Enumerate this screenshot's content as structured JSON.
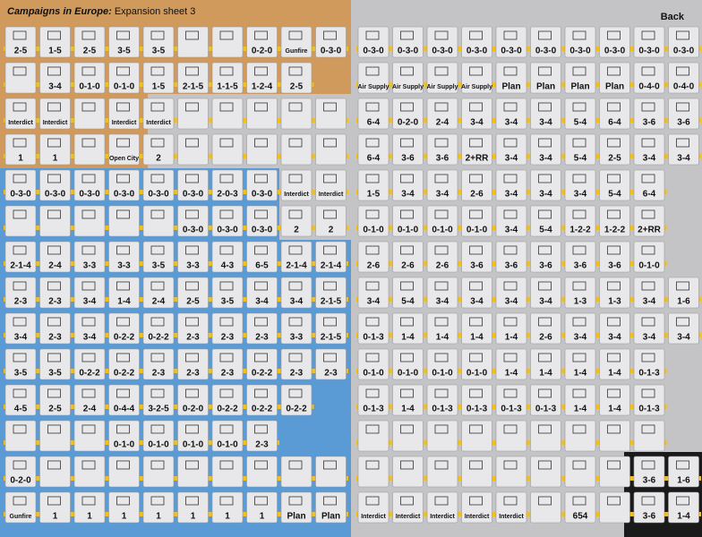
{
  "header": {
    "title_bold": "Campaigns in Europe:",
    "title": "Expansion sheet 3",
    "back": "Back"
  },
  "left_rows": [
    [
      "2-5",
      "1-5",
      "2-5",
      "3-5",
      "3-5",
      null,
      null,
      "0-2-0",
      "Gunfire",
      "0-3-0"
    ],
    [
      null,
      "3-4",
      "0-1-0",
      "0-1-0",
      "1-5",
      "2-1-5",
      "1-1-5",
      "1-2-4",
      "2-5"
    ],
    [
      "Interdict",
      "Interdict",
      null,
      "Interdict",
      "Interdict",
      null,
      null,
      null,
      null,
      null
    ],
    [
      "1",
      "1",
      null,
      "Open City",
      "2",
      null,
      null,
      null,
      null,
      null
    ],
    [
      "0-3-0",
      "0-3-0",
      "0-3-0",
      "0-3-0",
      "0-3-0",
      "0-3-0",
      "2-0-3",
      "0-3-0",
      "Interdict",
      "Interdict"
    ],
    [
      null,
      null,
      null,
      null,
      null,
      "0-3-0",
      "0-3-0",
      "0-3-0",
      "2",
      "2"
    ],
    [
      "2-1-4",
      "2-4",
      "3-3",
      "3-3",
      "3-5",
      "3-3",
      "4-3",
      "6-5",
      "2-1-4",
      "2-1-4"
    ],
    [
      "2-3",
      "2-3",
      "3-4",
      "1-4",
      "2-4",
      "2-5",
      "3-5",
      "3-4",
      "3-4",
      "2-1-5"
    ],
    [
      "3-4",
      "2-3",
      "3-4",
      "0-2-2",
      "0-2-2",
      "2-3",
      "2-3",
      "2-3",
      "3-3",
      "2-1-5"
    ],
    [
      "3-5",
      "3-5",
      "0-2-2",
      "0-2-2",
      "2-3",
      "2-3",
      "2-3",
      "0-2-2",
      "2-3",
      "2-3"
    ],
    [
      "4-5",
      "2-5",
      "2-4",
      "0-4-4",
      "3-2-5",
      "0-2-0",
      "0-2-2",
      "0-2-2",
      "0-2-2"
    ],
    [
      null,
      null,
      null,
      "0-1-0",
      "0-1-0",
      "0-1-0",
      "0-1-0",
      "2-3"
    ],
    [
      "0-2-0",
      null,
      null,
      null,
      null,
      null,
      null,
      null,
      null,
      null
    ],
    [
      "Gunfire",
      "1",
      "1",
      "1",
      "1",
      "1",
      "1",
      "1",
      "Plan",
      "Plan"
    ]
  ],
  "right_rows": [
    [
      "0-3-0",
      "0-3-0",
      "0-3-0",
      "0-3-0",
      "0-3-0",
      "0-3-0",
      "0-3-0",
      "0-3-0",
      "0-3-0",
      "0-3-0"
    ],
    [
      "Air Supply",
      "Air Supply",
      "Air Supply",
      "Air Supply",
      "Plan",
      "Plan",
      "Plan",
      "Plan",
      "0-4-0",
      "0-4-0"
    ],
    [
      "6-4",
      "0-2-0",
      "2-4",
      "3-4",
      "3-4",
      "3-4",
      "5-4",
      "6-4",
      "3-6",
      "3-6"
    ],
    [
      "6-4",
      "3-6",
      "3-6",
      "2+RR",
      "3-4",
      "3-4",
      "5-4",
      "2-5",
      "3-4",
      "3-4"
    ],
    [
      "1-5",
      "3-4",
      "3-4",
      "2-6",
      "3-4",
      "3-4",
      "3-4",
      "5-4",
      "6-4"
    ],
    [
      "0-1-0",
      "0-1-0",
      "0-1-0",
      "0-1-0",
      "3-4",
      "5-4",
      "1-2-2",
      "1-2-2",
      "2+RR"
    ],
    [
      "2-6",
      "2-6",
      "2-6",
      "3-6",
      "3-6",
      "3-6",
      "3-6",
      "3-6",
      "0-1-0"
    ],
    [
      "3-4",
      "5-4",
      "3-4",
      "3-4",
      "3-4",
      "3-4",
      "1-3",
      "1-3",
      "3-4",
      "1-6"
    ],
    [
      "0-1-3",
      "1-4",
      "1-4",
      "1-4",
      "1-4",
      "2-6",
      "3-4",
      "3-4",
      "3-4",
      "3-4"
    ],
    [
      "0-1-0",
      "0-1-0",
      "0-1-0",
      "0-1-0",
      "1-4",
      "1-4",
      "1-4",
      "1-4",
      "0-1-3"
    ],
    [
      "0-1-3",
      "1-4",
      "0-1-3",
      "0-1-3",
      "0-1-3",
      "0-1-3",
      "1-4",
      "1-4",
      "0-1-3"
    ],
    [
      null,
      null,
      null,
      null,
      null,
      null,
      null,
      null,
      null
    ],
    [
      null,
      null,
      null,
      null,
      null,
      null,
      null,
      null,
      "3-6",
      "1-6"
    ],
    [
      "Interdict",
      "Interdict",
      "Interdict",
      "Interdict",
      "Interdict",
      null,
      "654",
      null,
      "3-6",
      "1-4"
    ]
  ]
}
